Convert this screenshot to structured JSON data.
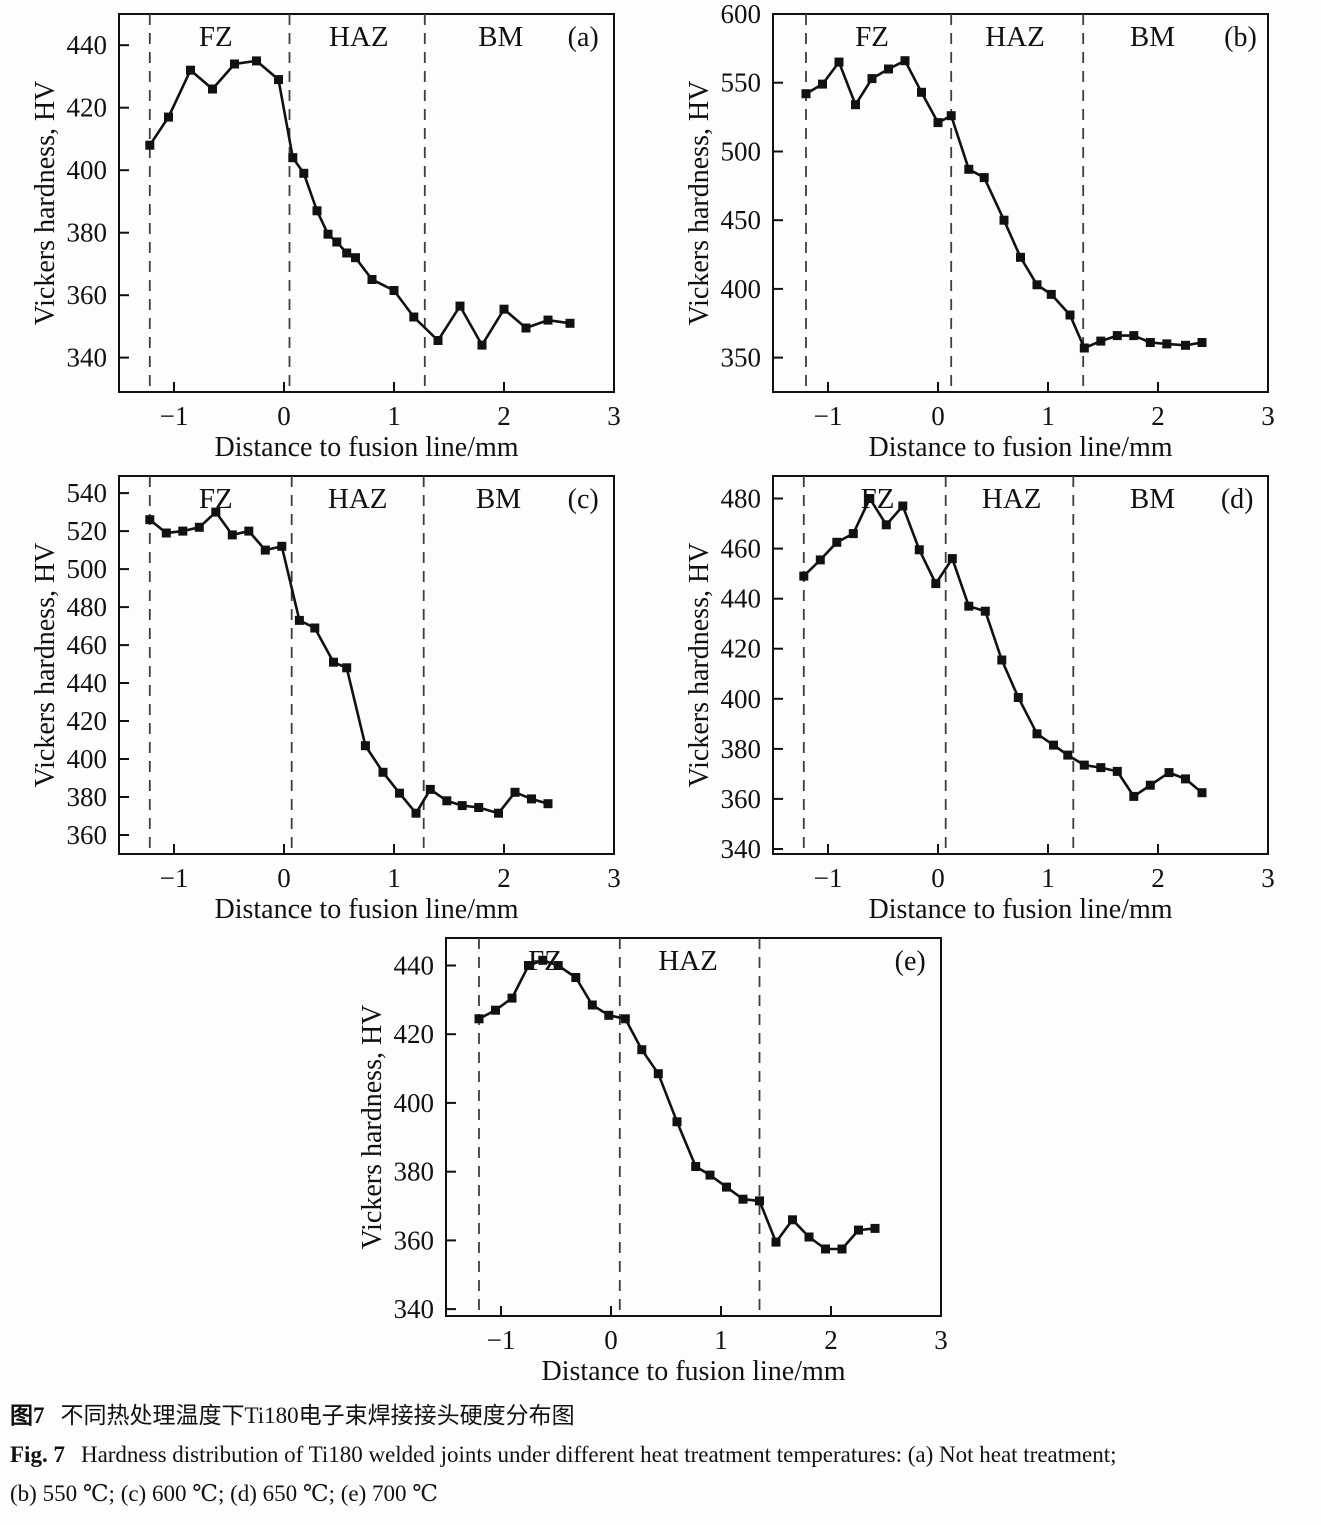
{
  "caption": {
    "zh_label": "图7",
    "zh_text": "不同热处理温度下Ti180电子束焊接接头硬度分布图",
    "en_label": "Fig. 7",
    "en_text": "Hardness distribution of Ti180 welded joints under different heat treatment temperatures: (a) Not heat treatment;",
    "en_line2": "(b) 550 ℃; (c) 600 ℃; (d) 650 ℃; (e) 700 ℃"
  },
  "colors": {
    "line": "#111111",
    "dashed": "#3d3d3d",
    "text": "#111111",
    "background": "#fdfdfd"
  },
  "chart_data": [
    {
      "id": "a",
      "type": "line",
      "panel_label": "(a)",
      "xlabel": "Distance to fusion line/mm",
      "ylabel": "Vickers hardness, HV",
      "xlim": [
        -1.5,
        3
      ],
      "ylim": [
        329,
        450
      ],
      "xticks": [
        -1,
        0,
        1,
        2,
        3
      ],
      "yticks": [
        340,
        360,
        380,
        400,
        420,
        440
      ],
      "grid": false,
      "zone_boundaries": [
        -1.22,
        0.05,
        1.28
      ],
      "zone_labels": [
        {
          "text": "FZ",
          "x": -0.62
        },
        {
          "text": "HAZ",
          "x": 0.68
        },
        {
          "text": "BM",
          "x": 1.97
        }
      ],
      "panel_label_x": 2.72,
      "series": [
        {
          "name": "Vickers hardness",
          "marker": "square",
          "x": [
            -1.22,
            -1.05,
            -0.85,
            -0.65,
            -0.45,
            -0.25,
            -0.05,
            0.08,
            0.18,
            0.3,
            0.4,
            0.48,
            0.57,
            0.65,
            0.8,
            1.0,
            1.18,
            1.4,
            1.6,
            1.8,
            2.0,
            2.2,
            2.4,
            2.6
          ],
          "y": [
            408,
            417,
            432,
            426,
            434,
            435,
            429,
            404,
            399,
            387,
            379.5,
            377,
            373.5,
            372,
            365,
            361.5,
            353,
            345.5,
            356.5,
            344,
            355.5,
            349.5,
            352,
            351
          ]
        }
      ]
    },
    {
      "id": "b",
      "type": "line",
      "panel_label": "(b)",
      "xlabel": "Distance to fusion line/mm",
      "ylabel": "Vickers hardness, HV",
      "xlim": [
        -1.5,
        3
      ],
      "ylim": [
        325,
        600
      ],
      "xticks": [
        -1,
        0,
        1,
        2,
        3
      ],
      "yticks": [
        350,
        400,
        450,
        500,
        550,
        600
      ],
      "grid": false,
      "zone_boundaries": [
        -1.2,
        0.12,
        1.32
      ],
      "zone_labels": [
        {
          "text": "FZ",
          "x": -0.6
        },
        {
          "text": "HAZ",
          "x": 0.7
        },
        {
          "text": "BM",
          "x": 1.95
        }
      ],
      "panel_label_x": 2.75,
      "series": [
        {
          "name": "Vickers hardness",
          "marker": "square",
          "x": [
            -1.2,
            -1.05,
            -0.9,
            -0.75,
            -0.6,
            -0.45,
            -0.3,
            -0.15,
            0.0,
            0.12,
            0.28,
            0.42,
            0.6,
            0.75,
            0.9,
            1.03,
            1.2,
            1.33,
            1.48,
            1.63,
            1.78,
            1.93,
            2.08,
            2.25,
            2.4
          ],
          "y": [
            542,
            549,
            565,
            534,
            553,
            560,
            566,
            543,
            521,
            526,
            487,
            481,
            450,
            423,
            403,
            396,
            381,
            357,
            362,
            366,
            366,
            361,
            360,
            359,
            361
          ]
        }
      ]
    },
    {
      "id": "c",
      "type": "line",
      "panel_label": "(c)",
      "xlabel": "Distance to fusion line/mm",
      "ylabel": "Vickers hardness, HV",
      "xlim": [
        -1.5,
        3
      ],
      "ylim": [
        350,
        549
      ],
      "xticks": [
        -1,
        0,
        1,
        2,
        3
      ],
      "yticks": [
        360,
        380,
        400,
        420,
        440,
        460,
        480,
        500,
        520,
        540
      ],
      "grid": false,
      "zone_boundaries": [
        -1.22,
        0.07,
        1.27
      ],
      "zone_labels": [
        {
          "text": "FZ",
          "x": -0.62
        },
        {
          "text": "HAZ",
          "x": 0.67
        },
        {
          "text": "BM",
          "x": 1.95
        }
      ],
      "panel_label_x": 2.72,
      "series": [
        {
          "name": "Vickers hardness",
          "marker": "square",
          "x": [
            -1.22,
            -1.07,
            -0.92,
            -0.77,
            -0.62,
            -0.47,
            -0.32,
            -0.17,
            -0.02,
            0.14,
            0.28,
            0.45,
            0.57,
            0.74,
            0.9,
            1.05,
            1.2,
            1.33,
            1.48,
            1.62,
            1.77,
            1.95,
            2.1,
            2.25,
            2.4
          ],
          "y": [
            526,
            519,
            520,
            522,
            530,
            518,
            520,
            510,
            512,
            473,
            469,
            451,
            448,
            407,
            393,
            382,
            371.5,
            384,
            378,
            375.5,
            374.5,
            371.5,
            382.5,
            379,
            376.5
          ]
        }
      ]
    },
    {
      "id": "d",
      "type": "line",
      "panel_label": "(d)",
      "xlabel": "Distance to fusion line/mm",
      "ylabel": "Vickers hardness, HV",
      "xlim": [
        -1.5,
        3
      ],
      "ylim": [
        338,
        489
      ],
      "xticks": [
        -1,
        0,
        1,
        2,
        3
      ],
      "yticks": [
        340,
        360,
        380,
        400,
        420,
        440,
        460,
        480
      ],
      "grid": false,
      "zone_boundaries": [
        -1.22,
        0.07,
        1.23
      ],
      "zone_labels": [
        {
          "text": "FZ",
          "x": -0.55
        },
        {
          "text": "HAZ",
          "x": 0.67
        },
        {
          "text": "BM",
          "x": 1.95
        }
      ],
      "panel_label_x": 2.72,
      "series": [
        {
          "name": "Vickers hardness",
          "marker": "square",
          "x": [
            -1.22,
            -1.07,
            -0.92,
            -0.77,
            -0.62,
            -0.47,
            -0.32,
            -0.17,
            -0.02,
            0.13,
            0.28,
            0.43,
            0.58,
            0.73,
            0.9,
            1.05,
            1.18,
            1.33,
            1.48,
            1.63,
            1.78,
            1.93,
            2.1,
            2.25,
            2.4
          ],
          "y": [
            449,
            455.5,
            462.5,
            466,
            480,
            469.5,
            477,
            459.5,
            446,
            456,
            437,
            435,
            415.5,
            400.5,
            386,
            381.5,
            377.5,
            373.5,
            372.5,
            371,
            361,
            365.5,
            370.5,
            368,
            362.5
          ]
        }
      ]
    },
    {
      "id": "e",
      "type": "line",
      "panel_label": "(e)",
      "xlabel": "Distance to fusion line/mm",
      "ylabel": "Vickers hardness, HV",
      "xlim": [
        -1.5,
        3
      ],
      "ylim": [
        338,
        448
      ],
      "xticks": [
        -1,
        0,
        1,
        2,
        3
      ],
      "yticks": [
        340,
        360,
        380,
        400,
        420,
        440
      ],
      "grid": false,
      "zone_boundaries": [
        -1.2,
        0.08,
        1.35
      ],
      "zone_labels": [
        {
          "text": "FZ",
          "x": -0.6
        },
        {
          "text": "HAZ",
          "x": 0.7
        }
      ],
      "panel_label_x": 2.72,
      "series": [
        {
          "name": "Vickers hardness",
          "marker": "square",
          "x": [
            -1.2,
            -1.05,
            -0.9,
            -0.75,
            -0.62,
            -0.48,
            -0.32,
            -0.17,
            -0.02,
            0.13,
            0.28,
            0.43,
            0.6,
            0.77,
            0.9,
            1.05,
            1.2,
            1.35,
            1.5,
            1.65,
            1.8,
            1.95,
            2.1,
            2.25,
            2.4
          ],
          "y": [
            424.5,
            427,
            430.5,
            440,
            441.5,
            440,
            436.5,
            428.5,
            425.5,
            424.5,
            415.5,
            408.5,
            394.5,
            381.5,
            379,
            375.5,
            372,
            371.5,
            359.5,
            366,
            361,
            357.5,
            357.5,
            363,
            363.5
          ]
        }
      ]
    }
  ]
}
